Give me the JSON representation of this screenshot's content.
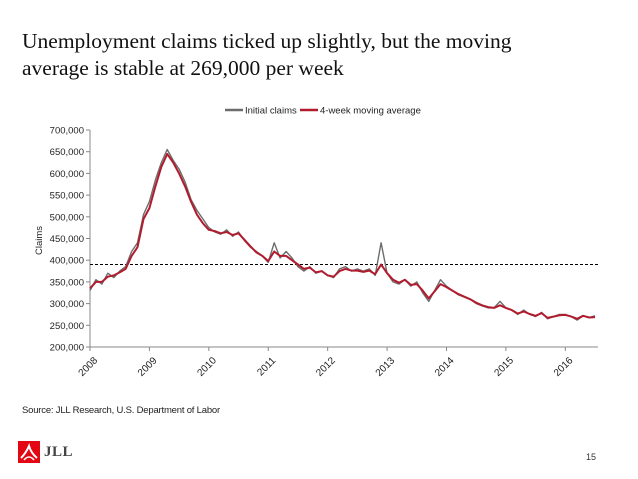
{
  "title": {
    "line1": "Unemployment claims ticked up slightly, but the moving",
    "line2": "average is stable at 269,000 per week"
  },
  "source": "Source: JLL Research, U.S. Department of Labor",
  "page_number": "15",
  "logo": {
    "text": "JLL"
  },
  "colors": {
    "initial_claims": "#6d6d6d",
    "moving_average": "#b01c2e",
    "reference_line": "#000000",
    "axis": "#888888"
  },
  "chart_data": {
    "type": "line",
    "title": "",
    "xlabel": "",
    "ylabel": "Claims",
    "ylim": [
      200000,
      700000
    ],
    "yticks": [
      200000,
      250000,
      300000,
      350000,
      400000,
      450000,
      500000,
      550000,
      600000,
      650000,
      700000
    ],
    "ytick_labels": [
      "200,000",
      "250,000",
      "300,000",
      "350,000",
      "400,000",
      "450,000",
      "500,000",
      "550,000",
      "600,000",
      "650,000",
      "700,000"
    ],
    "xlim": [
      2008.0,
      2016.55
    ],
    "xticks": [
      2008,
      2009,
      2010,
      2011,
      2012,
      2013,
      2014,
      2015,
      2016
    ],
    "xtick_labels": [
      "2008",
      "2009",
      "2010",
      "2011",
      "2012",
      "2013",
      "2014",
      "2015",
      "2016"
    ],
    "legend": {
      "position": "top-center",
      "entries": [
        "Initial claims",
        "4-week moving average"
      ]
    },
    "reference_line": {
      "y": 390000,
      "style": "dashed"
    },
    "x": [
      2008.0,
      2008.1,
      2008.2,
      2008.3,
      2008.4,
      2008.5,
      2008.6,
      2008.7,
      2008.8,
      2008.9,
      2009.0,
      2009.1,
      2009.2,
      2009.3,
      2009.4,
      2009.5,
      2009.6,
      2009.7,
      2009.8,
      2009.9,
      2010.0,
      2010.1,
      2010.2,
      2010.3,
      2010.4,
      2010.5,
      2010.6,
      2010.7,
      2010.8,
      2010.9,
      2011.0,
      2011.1,
      2011.2,
      2011.3,
      2011.4,
      2011.5,
      2011.6,
      2011.7,
      2011.8,
      2011.9,
      2012.0,
      2012.1,
      2012.2,
      2012.3,
      2012.4,
      2012.5,
      2012.6,
      2012.7,
      2012.8,
      2012.9,
      2013.0,
      2013.1,
      2013.2,
      2013.3,
      2013.4,
      2013.5,
      2013.6,
      2013.7,
      2013.8,
      2013.9,
      2014.0,
      2014.1,
      2014.2,
      2014.3,
      2014.4,
      2014.5,
      2014.6,
      2014.7,
      2014.8,
      2014.9,
      2015.0,
      2015.1,
      2015.2,
      2015.3,
      2015.4,
      2015.5,
      2015.6,
      2015.7,
      2015.8,
      2015.9,
      2016.0,
      2016.1,
      2016.2,
      2016.3,
      2016.4,
      2016.5
    ],
    "series": [
      {
        "name": "Initial claims",
        "values": [
          330000,
          355000,
          345000,
          370000,
          360000,
          375000,
          385000,
          420000,
          440000,
          505000,
          535000,
          585000,
          625000,
          655000,
          630000,
          610000,
          580000,
          540000,
          515000,
          495000,
          475000,
          465000,
          460000,
          470000,
          455000,
          465000,
          445000,
          430000,
          420000,
          410000,
          395000,
          440000,
          405000,
          420000,
          405000,
          385000,
          375000,
          385000,
          370000,
          375000,
          365000,
          360000,
          380000,
          385000,
          375000,
          380000,
          375000,
          380000,
          365000,
          440000,
          370000,
          350000,
          345000,
          355000,
          340000,
          350000,
          325000,
          305000,
          330000,
          355000,
          340000,
          330000,
          320000,
          315000,
          310000,
          300000,
          295000,
          290000,
          290000,
          305000,
          290000,
          285000,
          275000,
          285000,
          275000,
          270000,
          280000,
          265000,
          270000,
          275000,
          275000,
          270000,
          262000,
          272000,
          268000,
          272000
        ]
      },
      {
        "name": "4-week moving average",
        "values": [
          335000,
          350000,
          350000,
          362000,
          365000,
          372000,
          380000,
          410000,
          430000,
          495000,
          520000,
          570000,
          615000,
          645000,
          625000,
          600000,
          570000,
          535000,
          505000,
          485000,
          470000,
          467000,
          462000,
          465000,
          458000,
          462000,
          447000,
          432000,
          418000,
          410000,
          398000,
          420000,
          410000,
          410000,
          400000,
          390000,
          380000,
          383000,
          372000,
          375000,
          365000,
          362000,
          375000,
          380000,
          376000,
          376000,
          373000,
          376000,
          368000,
          390000,
          370000,
          355000,
          348000,
          355000,
          343000,
          345000,
          330000,
          312000,
          328000,
          345000,
          338000,
          330000,
          322000,
          316000,
          310000,
          302000,
          296000,
          292000,
          290000,
          296000,
          290000,
          285000,
          277000,
          282000,
          276000,
          272000,
          278000,
          267000,
          270000,
          273000,
          274000,
          270000,
          265000,
          272000,
          268000,
          269000
        ]
      }
    ]
  }
}
